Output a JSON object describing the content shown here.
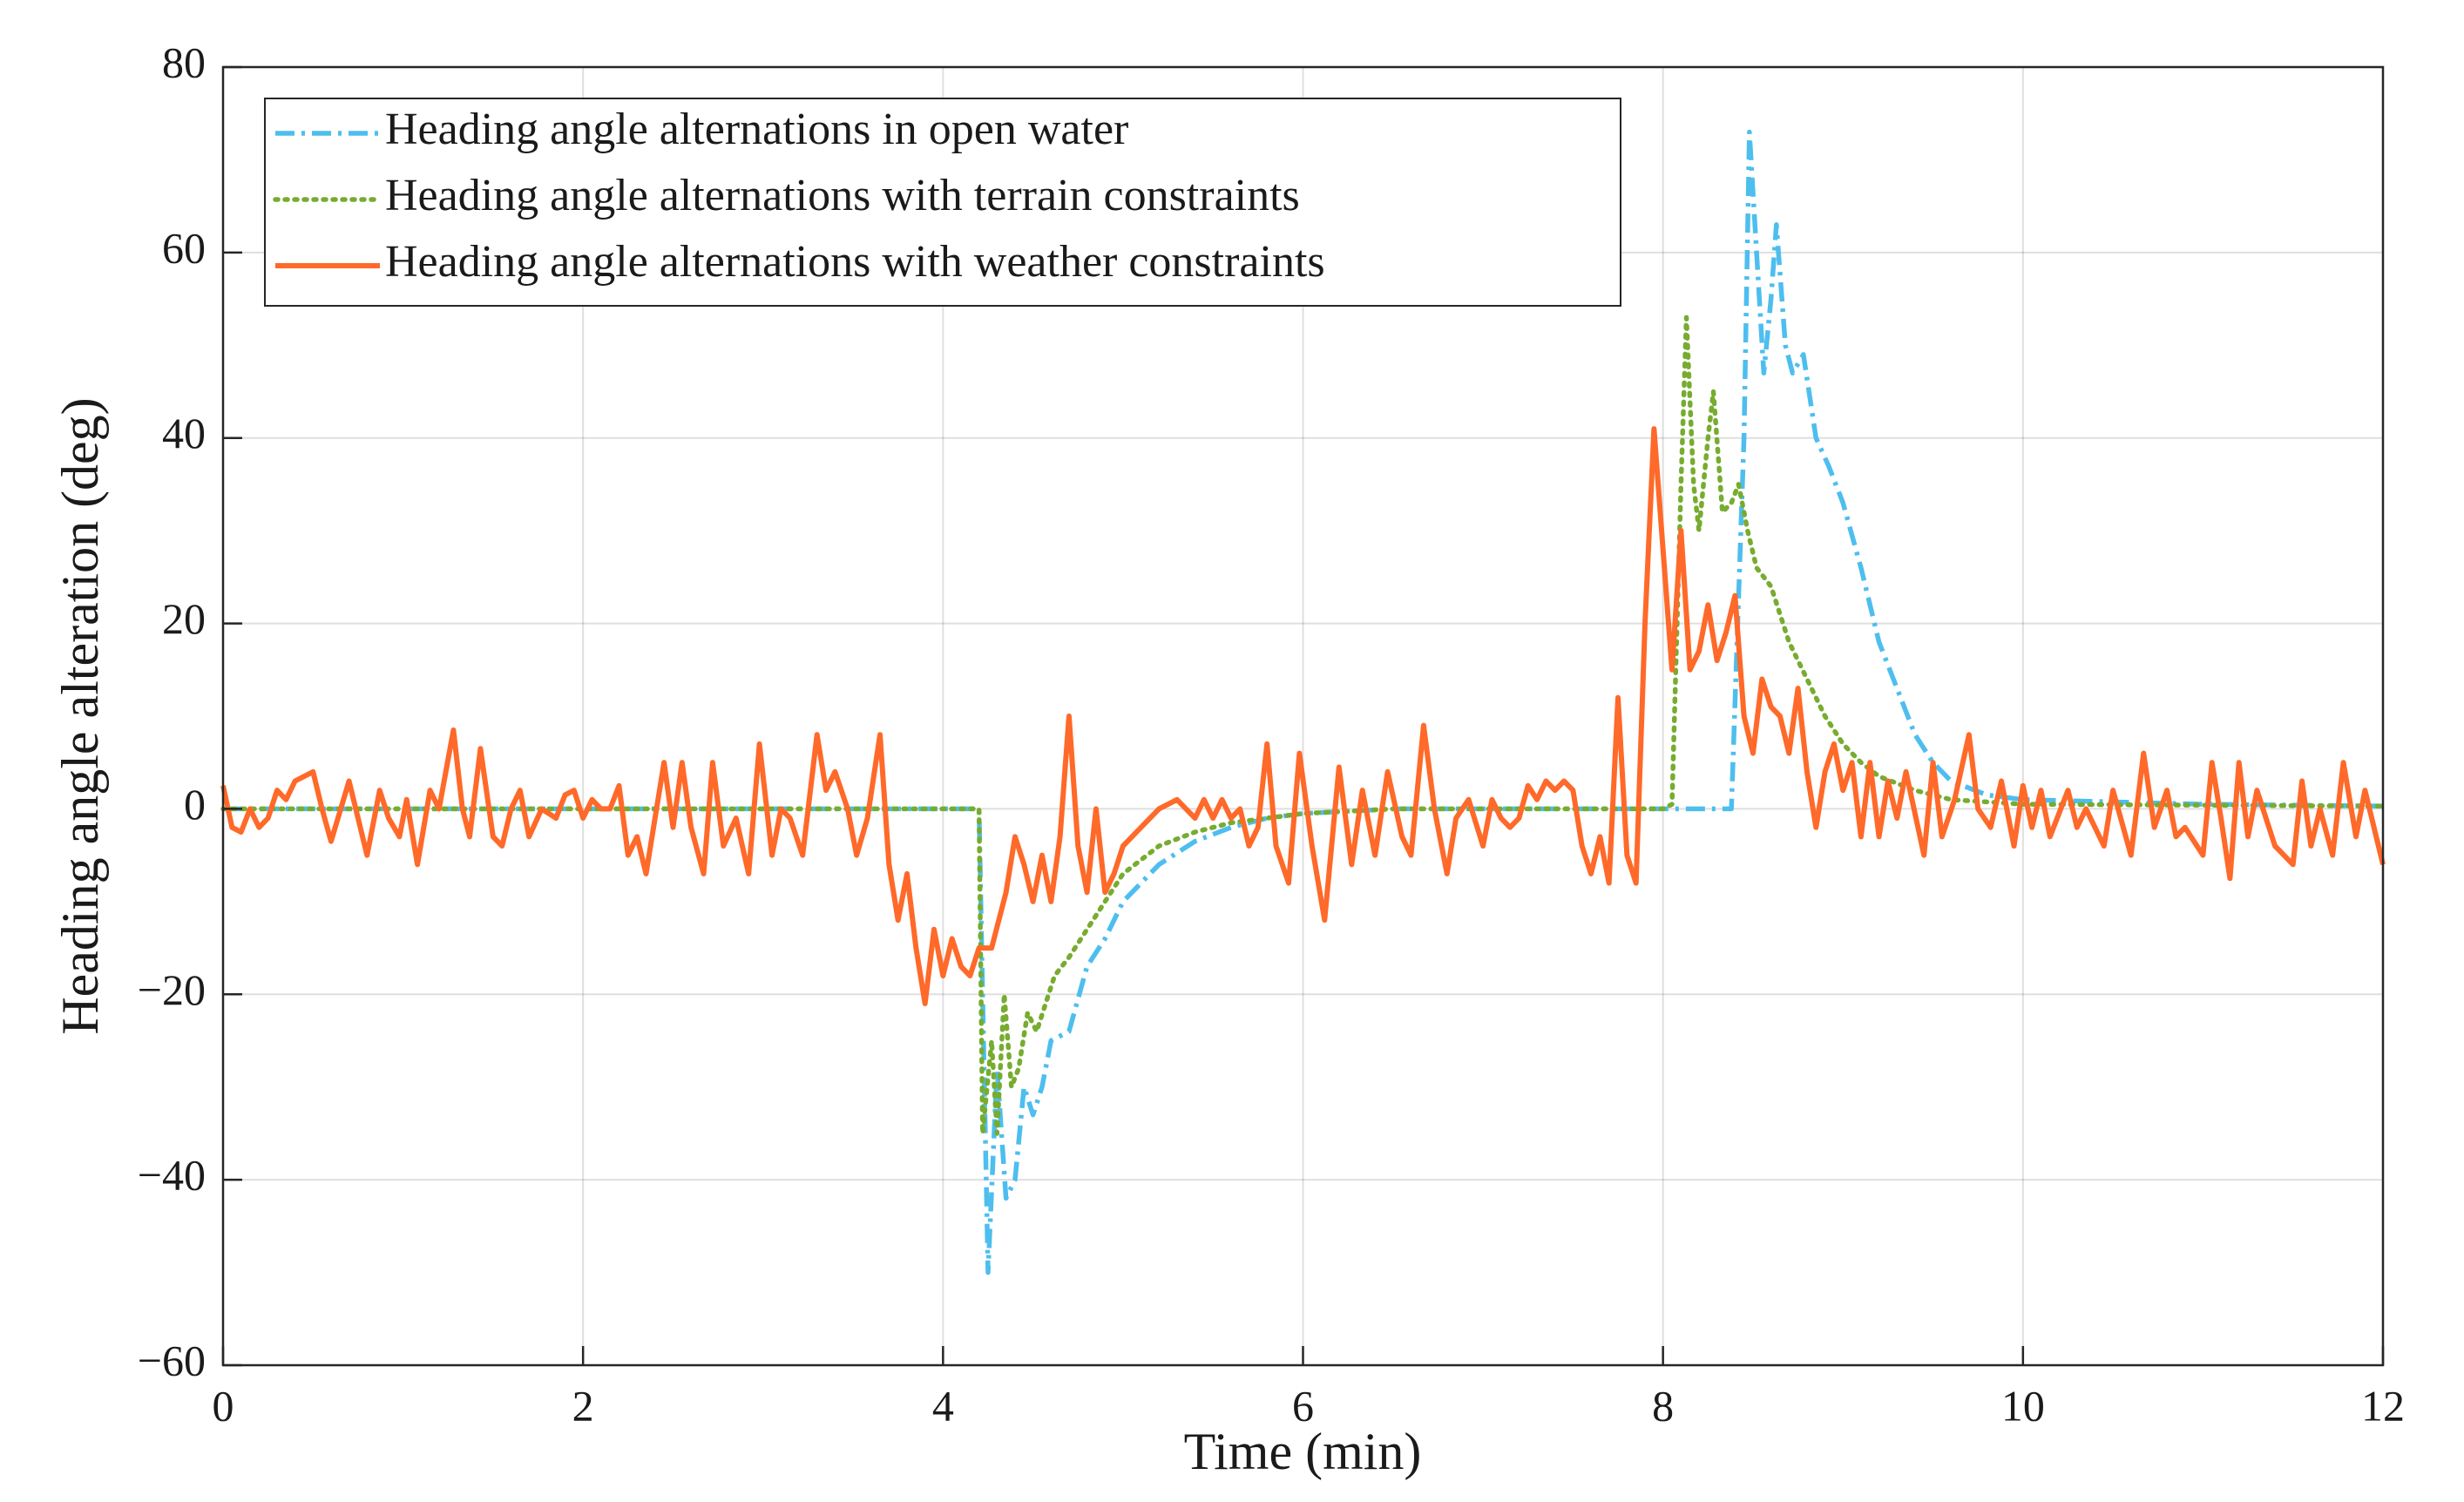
{
  "chart_data": {
    "type": "line",
    "xlabel": "Time (min)",
    "ylabel": "Heading angle alteration (deg)",
    "xlim": [
      0,
      12
    ],
    "ylim": [
      -60,
      80
    ],
    "xticks": [
      0,
      2,
      4,
      6,
      8,
      10,
      12
    ],
    "yticks": [
      {
        "value": -60,
        "label": "−60"
      },
      {
        "value": -40,
        "label": "−40"
      },
      {
        "value": -20,
        "label": "−20"
      },
      0,
      20,
      40,
      60,
      80
    ],
    "grid": true,
    "legend": "upper left",
    "series": [
      {
        "name": "Heading angle alternations in open water",
        "color": "#4dbeee",
        "style": "dashdot",
        "x": [
          0,
          4.2,
          4.25,
          4.3,
          4.35,
          4.4,
          4.45,
          4.5,
          4.55,
          4.6,
          4.7,
          4.8,
          4.9,
          5.0,
          5.2,
          5.4,
          5.6,
          5.8,
          6.0,
          6.5,
          8.38,
          8.45,
          8.48,
          8.52,
          8.56,
          8.6,
          8.63,
          8.68,
          8.72,
          8.78,
          8.85,
          8.92,
          9.0,
          9.1,
          9.2,
          9.3,
          9.4,
          9.5,
          9.6,
          9.8,
          10,
          11,
          12
        ],
        "values": [
          0,
          0,
          -50,
          -28,
          -42,
          -40,
          -30,
          -33,
          -30,
          -25,
          -24,
          -17,
          -14,
          -10,
          -6,
          -3.5,
          -2,
          -1,
          -0.5,
          0,
          0,
          40,
          73,
          60,
          47,
          55,
          63,
          50,
          47,
          49,
          40,
          37,
          33,
          26,
          18,
          13,
          8,
          5,
          3,
          1.5,
          1,
          0.5,
          0.3
        ]
      },
      {
        "name": "Heading angle alternations with terrain constraints",
        "color": "#77ac30",
        "style": "dotted",
        "x": [
          0,
          4.2,
          4.22,
          4.27,
          4.3,
          4.34,
          4.38,
          4.42,
          4.47,
          4.52,
          4.57,
          4.62,
          4.7,
          4.8,
          4.9,
          5.0,
          5.2,
          5.4,
          5.6,
          5.8,
          6.0,
          6.5,
          8.0,
          8.05,
          8.1,
          8.13,
          8.17,
          8.2,
          8.25,
          8.28,
          8.33,
          8.38,
          8.42,
          8.47,
          8.52,
          8.6,
          8.7,
          8.8,
          8.9,
          9.0,
          9.1,
          9.2,
          9.4,
          9.6,
          10,
          12
        ],
        "values": [
          0,
          0,
          -35,
          -25,
          -35,
          -20,
          -30,
          -28,
          -22,
          -24,
          -21,
          -18,
          -16,
          -13,
          -10,
          -7,
          -4,
          -2.5,
          -1.5,
          -1,
          -0.5,
          0,
          0,
          0.5,
          35,
          53,
          35,
          30,
          40,
          45,
          32,
          33,
          35,
          30,
          26,
          24,
          18,
          14,
          10,
          7,
          5,
          3.5,
          2,
          1,
          0.5,
          0.3
        ]
      },
      {
        "name": "Heading angle alternations with weather constraints",
        "color": "#ff6929",
        "style": "solid",
        "x": [
          0,
          0.05,
          0.1,
          0.15,
          0.2,
          0.25,
          0.3,
          0.35,
          0.4,
          0.5,
          0.55,
          0.6,
          0.7,
          0.75,
          0.8,
          0.87,
          0.92,
          0.98,
          1.02,
          1.08,
          1.15,
          1.2,
          1.28,
          1.33,
          1.37,
          1.43,
          1.5,
          1.55,
          1.6,
          1.65,
          1.7,
          1.77,
          1.85,
          1.9,
          1.95,
          2.0,
          2.05,
          2.1,
          2.15,
          2.2,
          2.25,
          2.3,
          2.35,
          2.4,
          2.45,
          2.5,
          2.55,
          2.6,
          2.67,
          2.72,
          2.78,
          2.85,
          2.92,
          2.98,
          3.05,
          3.1,
          3.15,
          3.22,
          3.3,
          3.35,
          3.4,
          3.47,
          3.52,
          3.58,
          3.65,
          3.7,
          3.75,
          3.8,
          3.85,
          3.9,
          3.95,
          4.0,
          4.05,
          4.1,
          4.15,
          4.2,
          4.27,
          4.35,
          4.4,
          4.45,
          4.5,
          4.55,
          4.6,
          4.65,
          4.7,
          4.75,
          4.8,
          4.85,
          4.9,
          4.95,
          5.0,
          5.1,
          5.2,
          5.3,
          5.4,
          5.45,
          5.5,
          5.55,
          5.6,
          5.65,
          5.7,
          5.75,
          5.8,
          5.85,
          5.92,
          5.98,
          6.05,
          6.12,
          6.2,
          6.27,
          6.33,
          6.4,
          6.47,
          6.55,
          6.6,
          6.67,
          6.73,
          6.8,
          6.85,
          6.92,
          7.0,
          7.05,
          7.1,
          7.15,
          7.2,
          7.25,
          7.3,
          7.35,
          7.4,
          7.45,
          7.5,
          7.55,
          7.6,
          7.65,
          7.7,
          7.75,
          7.8,
          7.85,
          7.9,
          7.95,
          8.0,
          8.05,
          8.1,
          8.15,
          8.2,
          8.25,
          8.3,
          8.35,
          8.4,
          8.45,
          8.5,
          8.55,
          8.6,
          8.65,
          8.7,
          8.75,
          8.8,
          8.85,
          8.9,
          8.95,
          9.0,
          9.05,
          9.1,
          9.15,
          9.2,
          9.25,
          9.3,
          9.35,
          9.45,
          9.5,
          9.55,
          9.62,
          9.7,
          9.75,
          9.82,
          9.88,
          9.95,
          10.0,
          10.05,
          10.1,
          10.15,
          10.25,
          10.3,
          10.35,
          10.45,
          10.5,
          10.6,
          10.67,
          10.73,
          10.8,
          10.85,
          10.9,
          11.0,
          11.05,
          11.1,
          11.15,
          11.2,
          11.25,
          11.3,
          11.4,
          11.5,
          11.55,
          11.6,
          11.65,
          11.72,
          11.78,
          11.85,
          11.9,
          11.95,
          12
        ],
        "values": [
          2.5,
          -2,
          -2.5,
          0,
          -2,
          -1,
          2,
          1,
          3,
          4,
          0,
          -3.5,
          3,
          -1,
          -5,
          2,
          -1,
          -3,
          1,
          -6,
          2,
          0,
          8.5,
          0,
          -3,
          6.5,
          -3,
          -4,
          0,
          2,
          -3,
          0,
          -1,
          1.5,
          2,
          -1,
          1,
          0,
          0,
          2.5,
          -5,
          -3,
          -7,
          -1,
          5,
          -2,
          5,
          -2,
          -7,
          5,
          -4,
          -1,
          -7,
          7,
          -5,
          0,
          -1,
          -5,
          8,
          2,
          4,
          0,
          -5,
          -1,
          8,
          -6,
          -12,
          -7,
          -15,
          -21,
          -13,
          -18,
          -14,
          -17,
          -18,
          -15,
          -15,
          -9,
          -3,
          -6,
          -10,
          -5,
          -10,
          -3,
          10,
          -4,
          -9,
          0,
          -9,
          -7,
          -4,
          -2,
          0,
          1,
          -1,
          1,
          -1,
          1,
          -1,
          0,
          -4,
          -2,
          7,
          -4,
          -8,
          6,
          -4,
          -12,
          4.5,
          -6,
          2,
          -5,
          4,
          -3,
          -5,
          9,
          0,
          -7,
          -1,
          1,
          -4,
          1,
          -1,
          -2,
          -1,
          2.5,
          1,
          3,
          2,
          3,
          2,
          -4,
          -7,
          -3,
          -8,
          12,
          -5,
          -8,
          20,
          41,
          28,
          15,
          30,
          15,
          17,
          22,
          16,
          19,
          23,
          10,
          6,
          14,
          11,
          10,
          6,
          13,
          4,
          -2,
          4,
          7,
          2,
          5,
          -3,
          5,
          -3,
          3,
          -1,
          4,
          -5,
          5,
          -3,
          1,
          8,
          0,
          -2,
          3,
          -4,
          2.5,
          -2,
          2,
          -3,
          2,
          -2,
          0,
          -4,
          2,
          -5,
          6,
          -2,
          2,
          -3,
          -2,
          -5,
          5,
          -1,
          -7.5,
          5,
          -3,
          2,
          -4,
          -6,
          3,
          -4,
          0,
          -5,
          5,
          -3,
          2,
          -2,
          -6
        ]
      }
    ]
  }
}
